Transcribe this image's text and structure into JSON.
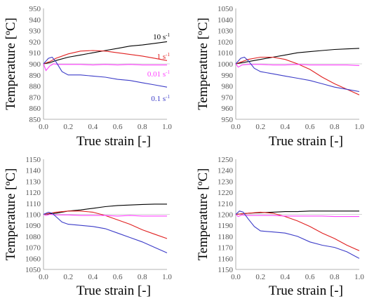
{
  "chart_data": [
    {
      "type": "line",
      "ylabel": "Temperature [ºC]",
      "xlabel": "True strain [-]",
      "xlim": [
        0,
        1.0
      ],
      "ylim": [
        850,
        950
      ],
      "xticks": [
        "0.0",
        "0.2",
        "0.4",
        "0.6",
        "0.8",
        "1.0"
      ],
      "yticks": [
        "850",
        "860",
        "870",
        "880",
        "890",
        "900",
        "910",
        "920",
        "930",
        "940",
        "950"
      ],
      "reference": 900,
      "grid": false,
      "series": [
        {
          "name": "10 s-1",
          "label_base": "10 s",
          "label_sup": "-1",
          "color": "#000000",
          "x": [
            0.0,
            0.05,
            0.1,
            0.2,
            0.3,
            0.4,
            0.5,
            0.6,
            0.7,
            0.8,
            0.9,
            1.0
          ],
          "y": [
            900,
            901,
            903,
            906,
            908,
            910,
            912,
            914,
            916,
            917,
            918.5,
            920
          ]
        },
        {
          "name": "1 s-1",
          "label_base": "1 s",
          "label_sup": "-1",
          "color": "#e02020",
          "x": [
            0.0,
            0.05,
            0.1,
            0.2,
            0.3,
            0.4,
            0.5,
            0.6,
            0.7,
            0.8,
            0.9,
            1.0
          ],
          "y": [
            900,
            902,
            905,
            909,
            911.5,
            912,
            911.5,
            910,
            908.5,
            907,
            905,
            903
          ]
        },
        {
          "name": "0.01 s-1",
          "label_base": "0.01 s",
          "label_sup": "-1",
          "color": "#ff40ff",
          "x": [
            0.0,
            0.02,
            0.05,
            0.08,
            0.12,
            0.2,
            0.3,
            0.4,
            0.5,
            0.6,
            0.7,
            0.8,
            0.9,
            1.0
          ],
          "y": [
            900,
            894,
            898,
            900,
            899.5,
            899.5,
            899.5,
            899,
            899.5,
            899,
            899.5,
            899,
            899,
            899
          ]
        },
        {
          "name": "0.1 s-1",
          "label_base": "0.1 s",
          "label_sup": "-1",
          "color": "#3c3cc8",
          "x": [
            0.0,
            0.04,
            0.07,
            0.1,
            0.15,
            0.2,
            0.3,
            0.4,
            0.5,
            0.6,
            0.7,
            0.8,
            0.9,
            1.0
          ],
          "y": [
            900,
            905,
            906,
            902,
            893,
            890,
            890,
            889,
            888,
            886,
            885,
            883,
            881,
            879
          ]
        }
      ]
    },
    {
      "type": "line",
      "ylabel": "Temperature [ºC]",
      "xlabel": "True strain [-]",
      "xlim": [
        0,
        1.0
      ],
      "ylim": [
        950,
        1050
      ],
      "xticks": [
        "0.0",
        "0.2",
        "0.4",
        "0.6",
        "0.8",
        "1.0"
      ],
      "yticks": [
        "950",
        "960",
        "970",
        "980",
        "990",
        "1000",
        "1010",
        "1020",
        "1030",
        "1040",
        "1050"
      ],
      "reference": 1000,
      "grid": false,
      "series": [
        {
          "color": "#000000",
          "x": [
            0.0,
            0.1,
            0.2,
            0.3,
            0.4,
            0.5,
            0.6,
            0.7,
            0.8,
            0.9,
            1.0
          ],
          "y": [
            1000,
            1002,
            1004,
            1006,
            1008,
            1010,
            1011,
            1012,
            1013,
            1013.5,
            1014
          ]
        },
        {
          "color": "#e02020",
          "x": [
            0.0,
            0.1,
            0.2,
            0.3,
            0.4,
            0.5,
            0.6,
            0.7,
            0.8,
            0.9,
            1.0
          ],
          "y": [
            1000,
            1004,
            1006,
            1006,
            1004,
            1000,
            995,
            988,
            982,
            977,
            972
          ]
        },
        {
          "color": "#ff40ff",
          "x": [
            0.0,
            0.02,
            0.05,
            0.1,
            0.2,
            0.3,
            0.4,
            0.5,
            0.6,
            0.7,
            0.8,
            0.9,
            1.0
          ],
          "y": [
            1000,
            997,
            999,
            999.5,
            999.5,
            999,
            999,
            999.5,
            999,
            999,
            999,
            999,
            998.5
          ]
        },
        {
          "color": "#3c3cc8",
          "x": [
            0.0,
            0.04,
            0.07,
            0.1,
            0.15,
            0.2,
            0.3,
            0.4,
            0.5,
            0.6,
            0.7,
            0.8,
            0.9,
            1.0
          ],
          "y": [
            1000,
            1005,
            1006,
            1003,
            996,
            993,
            991,
            989,
            987,
            985,
            982,
            979,
            977,
            975
          ]
        }
      ]
    },
    {
      "type": "line",
      "ylabel": "Temperature [ºC]",
      "xlabel": "True strain [-]",
      "xlim": [
        0,
        1.0
      ],
      "ylim": [
        1050,
        1150
      ],
      "xticks": [
        "0.0",
        "0.2",
        "0.4",
        "0.6",
        "0.8",
        "1.0"
      ],
      "yticks": [
        "1050",
        "1060",
        "1070",
        "1080",
        "1090",
        "1100",
        "1110",
        "1120",
        "1130",
        "1140",
        "1150"
      ],
      "reference": 1100,
      "grid": false,
      "series": [
        {
          "color": "#000000",
          "x": [
            0.0,
            0.1,
            0.2,
            0.3,
            0.4,
            0.5,
            0.6,
            0.7,
            0.8,
            0.9,
            1.0
          ],
          "y": [
            1100,
            1101,
            1103,
            1104,
            1105.5,
            1107,
            1108,
            1108.5,
            1109,
            1109.3,
            1109.3
          ]
        },
        {
          "color": "#e02020",
          "x": [
            0.0,
            0.1,
            0.2,
            0.3,
            0.4,
            0.5,
            0.6,
            0.7,
            0.8,
            0.9,
            1.0
          ],
          "y": [
            1100,
            1102,
            1103,
            1103,
            1102,
            1099,
            1095,
            1091,
            1086,
            1082,
            1078
          ]
        },
        {
          "color": "#ff40ff",
          "x": [
            0.0,
            0.02,
            0.05,
            0.1,
            0.2,
            0.3,
            0.4,
            0.5,
            0.6,
            0.7,
            0.8,
            0.9,
            1.0
          ],
          "y": [
            1100,
            1099,
            1100,
            1099.5,
            1099.5,
            1099,
            1099,
            1099,
            1098.5,
            1099,
            1098.5,
            1098.5,
            1098.5
          ]
        },
        {
          "color": "#3c3cc8",
          "x": [
            0.0,
            0.04,
            0.07,
            0.1,
            0.15,
            0.2,
            0.3,
            0.4,
            0.5,
            0.6,
            0.7,
            0.8,
            0.9,
            1.0
          ],
          "y": [
            1100,
            1102,
            1101,
            1098,
            1093,
            1091,
            1090,
            1089,
            1087,
            1083,
            1079,
            1075,
            1070,
            1065
          ]
        }
      ]
    },
    {
      "type": "line",
      "ylabel": "Temperature [ºC]",
      "xlabel": "True strain [-]",
      "xlim": [
        0,
        1.0
      ],
      "ylim": [
        1150,
        1250
      ],
      "xticks": [
        "0.0",
        "0.2",
        "0.4",
        "0.6",
        "0.8",
        "1.0"
      ],
      "yticks": [
        "1150",
        "1160",
        "1170",
        "1180",
        "1190",
        "1200",
        "1210",
        "1220",
        "1230",
        "1240",
        "1250"
      ],
      "reference": 1200,
      "grid": false,
      "series": [
        {
          "color": "#000000",
          "x": [
            0.0,
            0.1,
            0.2,
            0.3,
            0.4,
            0.5,
            0.6,
            0.7,
            0.8,
            0.9,
            1.0
          ],
          "y": [
            1200,
            1201,
            1201.5,
            1202,
            1202.5,
            1202.5,
            1203,
            1203,
            1203,
            1203,
            1203
          ]
        },
        {
          "color": "#e02020",
          "x": [
            0.0,
            0.1,
            0.2,
            0.3,
            0.4,
            0.5,
            0.6,
            0.7,
            0.8,
            0.9,
            1.0
          ],
          "y": [
            1200,
            1201,
            1202,
            1201,
            1198,
            1194,
            1189,
            1183,
            1178,
            1172,
            1167
          ]
        },
        {
          "color": "#ff40ff",
          "x": [
            0.0,
            0.02,
            0.05,
            0.1,
            0.2,
            0.3,
            0.4,
            0.5,
            0.6,
            0.7,
            0.8,
            0.9,
            1.0
          ],
          "y": [
            1200,
            1198,
            1199.5,
            1199,
            1199,
            1199,
            1198.5,
            1198.5,
            1198.5,
            1198.5,
            1198,
            1198,
            1198
          ]
        },
        {
          "color": "#3c3cc8",
          "x": [
            0.0,
            0.03,
            0.06,
            0.1,
            0.15,
            0.2,
            0.3,
            0.4,
            0.5,
            0.6,
            0.7,
            0.8,
            0.9,
            1.0
          ],
          "y": [
            1200,
            1203,
            1202,
            1196,
            1189,
            1185,
            1184,
            1183,
            1180,
            1175,
            1172,
            1170,
            1166,
            1160
          ]
        }
      ]
    }
  ]
}
